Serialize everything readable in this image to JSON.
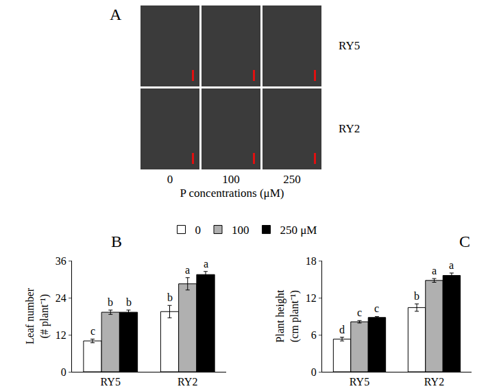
{
  "photo_panel": {
    "title": "A",
    "rows": [
      "RY5",
      "RY2"
    ],
    "columns": [
      "0",
      "100",
      "250"
    ],
    "x_label": "P concentrations (μM)"
  },
  "chart_data": [
    {
      "type": "bar",
      "title": "B",
      "categories": [
        "RY5",
        "RY2"
      ],
      "y_label": "Leaf number\n(# plant⁻¹)",
      "ylim": [
        0,
        36
      ],
      "yticks": [
        0,
        12,
        24,
        36
      ],
      "grid": false,
      "legend": "top",
      "series": [
        {
          "name": "0",
          "color": "#ffffff",
          "values": [
            10,
            19.5
          ],
          "errors": [
            0.6,
            2.0
          ],
          "letters": [
            "c",
            "b"
          ]
        },
        {
          "name": "100",
          "color": "#b0b0b0",
          "values": [
            19.3,
            28.5
          ],
          "errors": [
            0.7,
            2.0
          ],
          "letters": [
            "b",
            "a"
          ]
        },
        {
          "name": "250 μM",
          "color": "#000000",
          "values": [
            19.3,
            31.5
          ],
          "errors": [
            0.7,
            1.0
          ],
          "letters": [
            "b",
            "a"
          ]
        }
      ]
    },
    {
      "type": "bar",
      "title": "C",
      "categories": [
        "RY5",
        "RY2"
      ],
      "y_label": "Plant height\n(cm plant⁻¹)",
      "ylim": [
        0,
        18
      ],
      "yticks": [
        0,
        6,
        12,
        18
      ],
      "grid": false,
      "series": [
        {
          "name": "0",
          "color": "#ffffff",
          "values": [
            5.3,
            10.4
          ],
          "errors": [
            0.3,
            0.6
          ],
          "letters": [
            "d",
            "b"
          ]
        },
        {
          "name": "100",
          "color": "#b0b0b0",
          "values": [
            8.1,
            14.8
          ],
          "errors": [
            0.2,
            0.3
          ],
          "letters": [
            "c",
            "a"
          ]
        },
        {
          "name": "250 μM",
          "color": "#000000",
          "values": [
            8.8,
            15.6
          ],
          "errors": [
            0.15,
            0.4
          ],
          "letters": [
            "c",
            "a"
          ]
        }
      ]
    }
  ]
}
